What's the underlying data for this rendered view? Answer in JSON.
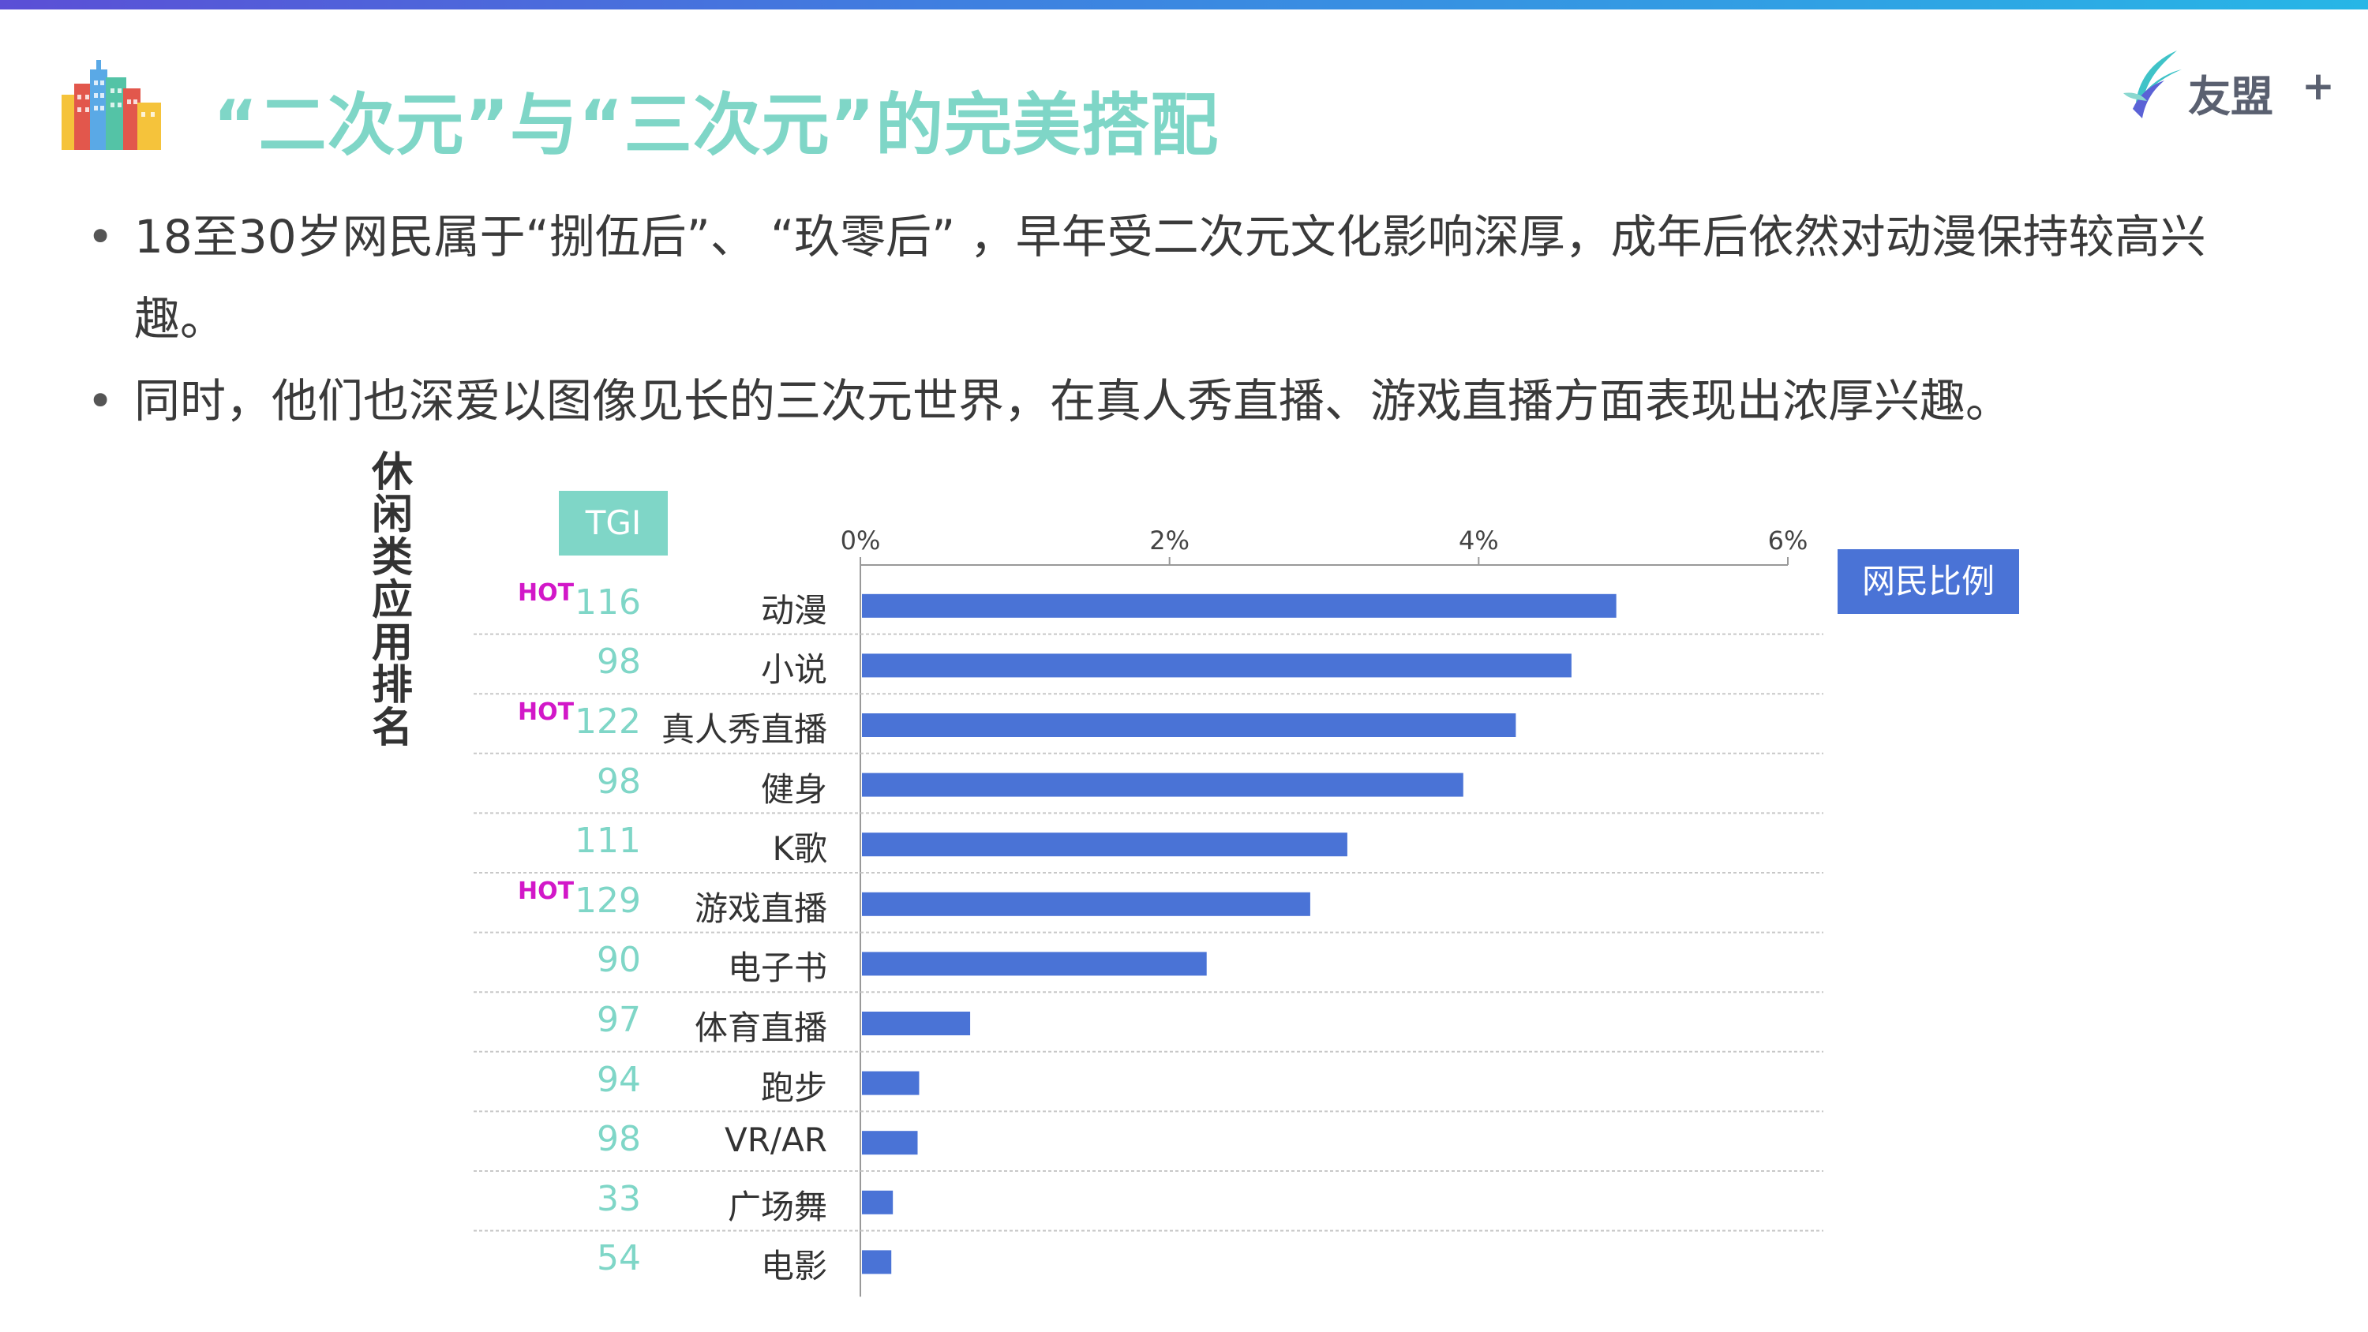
{
  "header": {
    "title": "“二次元”与“三次元”的完美搭配",
    "brand_name": "友盟",
    "brand_plus": "+",
    "gradient_colors": [
      "#5b4fd6",
      "#27b6e6"
    ],
    "accent_color": "#7fd6c7"
  },
  "bullets": [
    "18至30岁网民属于“捌伍后”、 “玖零后” ，早年受二次元文化影响深厚，成年后依然对动漫保持较高兴趣。",
    "同时，他们也深爱以图像见长的三次元世界，在真人秀直播、游戏直播方面表现出浓厚兴趣。"
  ],
  "bullet_mark": "•",
  "chart_data": {
    "type": "bar",
    "orientation": "horizontal",
    "vertical_label": "休闲类应用排名",
    "tgi_header": "TGI",
    "legend": "网民比例",
    "bar_color": "#4a73d6",
    "tgi_color": "#7fd6c7",
    "hot_color": "#d218c8",
    "hot_label": "HOT",
    "xlim": [
      0,
      6
    ],
    "x_ticks": [
      "0%",
      "2%",
      "4%",
      "6%"
    ],
    "x_tick_values": [
      0,
      2,
      4,
      6
    ],
    "categories": [
      "动漫",
      "小说",
      "真人秀直播",
      "健身",
      "K歌",
      "游戏直播",
      "电子书",
      "体育直播",
      "跑步",
      "VR/AR",
      "广场舞",
      "电影"
    ],
    "values": [
      4.88,
      4.59,
      4.23,
      3.89,
      3.14,
      2.9,
      2.23,
      0.7,
      0.37,
      0.36,
      0.2,
      0.19
    ],
    "tgi": [
      "116",
      "98",
      "122",
      "98",
      "111",
      "129",
      "90",
      "97",
      "94",
      "98",
      "33",
      "54"
    ],
    "hot": [
      true,
      false,
      true,
      false,
      false,
      true,
      false,
      false,
      false,
      false,
      false,
      false
    ],
    "grid": false,
    "legend_position": "top-right"
  }
}
